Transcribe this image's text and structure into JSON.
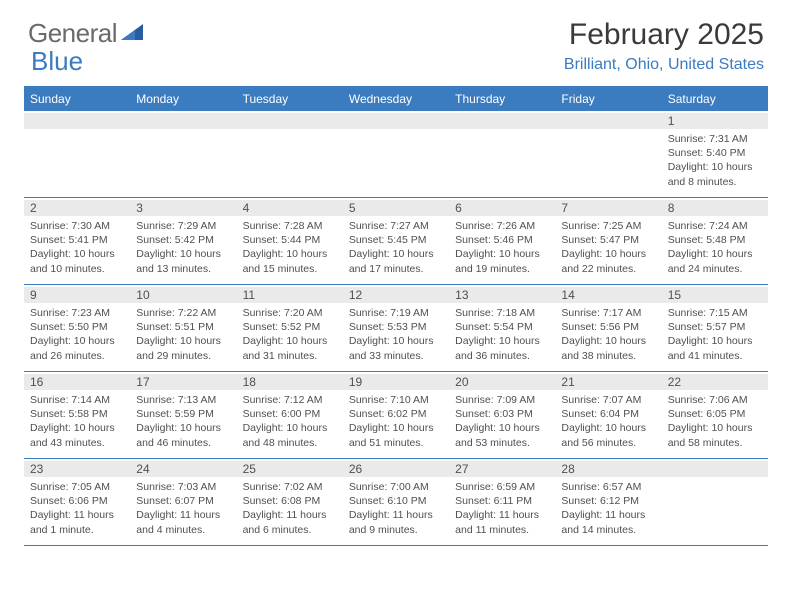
{
  "logo": {
    "text1": "General",
    "text2": "Blue"
  },
  "title": "February 2025",
  "location": "Brilliant, Ohio, United States",
  "weekdays": [
    "Sunday",
    "Monday",
    "Tuesday",
    "Wednesday",
    "Thursday",
    "Friday",
    "Saturday"
  ],
  "colors": {
    "header_blue": "#3b7bbf",
    "band_gray": "#eaeaea",
    "text_gray": "#505050",
    "logo_gray": "#6a6a6a"
  },
  "weeks": [
    [
      {
        "n": "",
        "sr": "",
        "ss": "",
        "dl": ""
      },
      {
        "n": "",
        "sr": "",
        "ss": "",
        "dl": ""
      },
      {
        "n": "",
        "sr": "",
        "ss": "",
        "dl": ""
      },
      {
        "n": "",
        "sr": "",
        "ss": "",
        "dl": ""
      },
      {
        "n": "",
        "sr": "",
        "ss": "",
        "dl": ""
      },
      {
        "n": "",
        "sr": "",
        "ss": "",
        "dl": ""
      },
      {
        "n": "1",
        "sr": "Sunrise: 7:31 AM",
        "ss": "Sunset: 5:40 PM",
        "dl": "Daylight: 10 hours and 8 minutes."
      }
    ],
    [
      {
        "n": "2",
        "sr": "Sunrise: 7:30 AM",
        "ss": "Sunset: 5:41 PM",
        "dl": "Daylight: 10 hours and 10 minutes."
      },
      {
        "n": "3",
        "sr": "Sunrise: 7:29 AM",
        "ss": "Sunset: 5:42 PM",
        "dl": "Daylight: 10 hours and 13 minutes."
      },
      {
        "n": "4",
        "sr": "Sunrise: 7:28 AM",
        "ss": "Sunset: 5:44 PM",
        "dl": "Daylight: 10 hours and 15 minutes."
      },
      {
        "n": "5",
        "sr": "Sunrise: 7:27 AM",
        "ss": "Sunset: 5:45 PM",
        "dl": "Daylight: 10 hours and 17 minutes."
      },
      {
        "n": "6",
        "sr": "Sunrise: 7:26 AM",
        "ss": "Sunset: 5:46 PM",
        "dl": "Daylight: 10 hours and 19 minutes."
      },
      {
        "n": "7",
        "sr": "Sunrise: 7:25 AM",
        "ss": "Sunset: 5:47 PM",
        "dl": "Daylight: 10 hours and 22 minutes."
      },
      {
        "n": "8",
        "sr": "Sunrise: 7:24 AM",
        "ss": "Sunset: 5:48 PM",
        "dl": "Daylight: 10 hours and 24 minutes."
      }
    ],
    [
      {
        "n": "9",
        "sr": "Sunrise: 7:23 AM",
        "ss": "Sunset: 5:50 PM",
        "dl": "Daylight: 10 hours and 26 minutes."
      },
      {
        "n": "10",
        "sr": "Sunrise: 7:22 AM",
        "ss": "Sunset: 5:51 PM",
        "dl": "Daylight: 10 hours and 29 minutes."
      },
      {
        "n": "11",
        "sr": "Sunrise: 7:20 AM",
        "ss": "Sunset: 5:52 PM",
        "dl": "Daylight: 10 hours and 31 minutes."
      },
      {
        "n": "12",
        "sr": "Sunrise: 7:19 AM",
        "ss": "Sunset: 5:53 PM",
        "dl": "Daylight: 10 hours and 33 minutes."
      },
      {
        "n": "13",
        "sr": "Sunrise: 7:18 AM",
        "ss": "Sunset: 5:54 PM",
        "dl": "Daylight: 10 hours and 36 minutes."
      },
      {
        "n": "14",
        "sr": "Sunrise: 7:17 AM",
        "ss": "Sunset: 5:56 PM",
        "dl": "Daylight: 10 hours and 38 minutes."
      },
      {
        "n": "15",
        "sr": "Sunrise: 7:15 AM",
        "ss": "Sunset: 5:57 PM",
        "dl": "Daylight: 10 hours and 41 minutes."
      }
    ],
    [
      {
        "n": "16",
        "sr": "Sunrise: 7:14 AM",
        "ss": "Sunset: 5:58 PM",
        "dl": "Daylight: 10 hours and 43 minutes."
      },
      {
        "n": "17",
        "sr": "Sunrise: 7:13 AM",
        "ss": "Sunset: 5:59 PM",
        "dl": "Daylight: 10 hours and 46 minutes."
      },
      {
        "n": "18",
        "sr": "Sunrise: 7:12 AM",
        "ss": "Sunset: 6:00 PM",
        "dl": "Daylight: 10 hours and 48 minutes."
      },
      {
        "n": "19",
        "sr": "Sunrise: 7:10 AM",
        "ss": "Sunset: 6:02 PM",
        "dl": "Daylight: 10 hours and 51 minutes."
      },
      {
        "n": "20",
        "sr": "Sunrise: 7:09 AM",
        "ss": "Sunset: 6:03 PM",
        "dl": "Daylight: 10 hours and 53 minutes."
      },
      {
        "n": "21",
        "sr": "Sunrise: 7:07 AM",
        "ss": "Sunset: 6:04 PM",
        "dl": "Daylight: 10 hours and 56 minutes."
      },
      {
        "n": "22",
        "sr": "Sunrise: 7:06 AM",
        "ss": "Sunset: 6:05 PM",
        "dl": "Daylight: 10 hours and 58 minutes."
      }
    ],
    [
      {
        "n": "23",
        "sr": "Sunrise: 7:05 AM",
        "ss": "Sunset: 6:06 PM",
        "dl": "Daylight: 11 hours and 1 minute."
      },
      {
        "n": "24",
        "sr": "Sunrise: 7:03 AM",
        "ss": "Sunset: 6:07 PM",
        "dl": "Daylight: 11 hours and 4 minutes."
      },
      {
        "n": "25",
        "sr": "Sunrise: 7:02 AM",
        "ss": "Sunset: 6:08 PM",
        "dl": "Daylight: 11 hours and 6 minutes."
      },
      {
        "n": "26",
        "sr": "Sunrise: 7:00 AM",
        "ss": "Sunset: 6:10 PM",
        "dl": "Daylight: 11 hours and 9 minutes."
      },
      {
        "n": "27",
        "sr": "Sunrise: 6:59 AM",
        "ss": "Sunset: 6:11 PM",
        "dl": "Daylight: 11 hours and 11 minutes."
      },
      {
        "n": "28",
        "sr": "Sunrise: 6:57 AM",
        "ss": "Sunset: 6:12 PM",
        "dl": "Daylight: 11 hours and 14 minutes."
      },
      {
        "n": "",
        "sr": "",
        "ss": "",
        "dl": ""
      }
    ]
  ]
}
